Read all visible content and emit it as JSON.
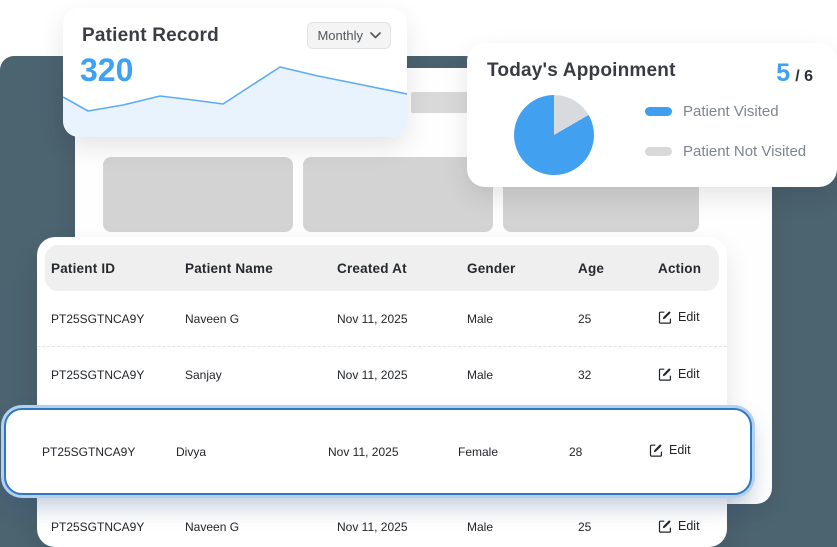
{
  "patient_record_card": {
    "title": "Patient Record",
    "count": "320",
    "period_selector": {
      "selected": "Monthly"
    }
  },
  "appointment_card": {
    "title": "Today's Appoinment",
    "visited_count": "5",
    "total_label": "/ 6",
    "legend": [
      {
        "label": "Patient Visited",
        "color": "#3d9ef2"
      },
      {
        "label": "Patient Not Visited",
        "color": "#d9d9d9"
      }
    ]
  },
  "chart_data": [
    {
      "type": "line",
      "title": "Patient Record",
      "subtitle_value": 320,
      "period": "Monthly",
      "axes_labeled": false,
      "legend_position": "none",
      "style": "area fill under line",
      "line_color": "#5fabf3",
      "fill_color": "#e9f3fd",
      "points_norm_x_percent": [
        0,
        7,
        17,
        28,
        38,
        47,
        63,
        74,
        87,
        100
      ],
      "points_norm_height_percent": [
        52,
        34,
        42,
        53,
        48,
        43,
        91,
        79,
        68,
        56
      ]
    },
    {
      "type": "pie",
      "title": "Today's Appoinment",
      "labels": [
        "Patient Visited",
        "Patient Not Visited"
      ],
      "values": [
        5,
        1
      ],
      "colors": [
        "#41a0f0",
        "#d8dbdd"
      ],
      "legend_position": "right"
    }
  ],
  "table": {
    "columns": [
      "Patient ID",
      "Patient Name",
      "Created At",
      "Gender",
      "Age",
      "Action"
    ],
    "action_label": "Edit",
    "rows": [
      {
        "id": "PT25SGTNCA9Y",
        "name": "Naveen G",
        "created": "Nov 11, 2025",
        "gender": "Male",
        "age": "25",
        "action": "Edit",
        "highlighted": false
      },
      {
        "id": "PT25SGTNCA9Y",
        "name": "Sanjay",
        "created": "Nov 11, 2025",
        "gender": "Male",
        "age": "32",
        "action": "Edit",
        "highlighted": false
      },
      {
        "id": "PT25SGTNCA9Y",
        "name": "Divya",
        "created": "Nov 11, 2025",
        "gender": "Female",
        "age": "28",
        "action": "Edit",
        "highlighted": true
      },
      {
        "id": "PT25SGTNCA9Y",
        "name": "Naveen G",
        "created": "Nov 11, 2025",
        "gender": "Male",
        "age": "25",
        "action": "Edit",
        "highlighted": false
      }
    ]
  },
  "colors": {
    "accent_blue": "#3da1f4",
    "dark_window": "#4c6370",
    "skeleton_gray": "#d3d3d3",
    "header_bg": "#efefef",
    "highlight_border": "#2e77c2"
  }
}
